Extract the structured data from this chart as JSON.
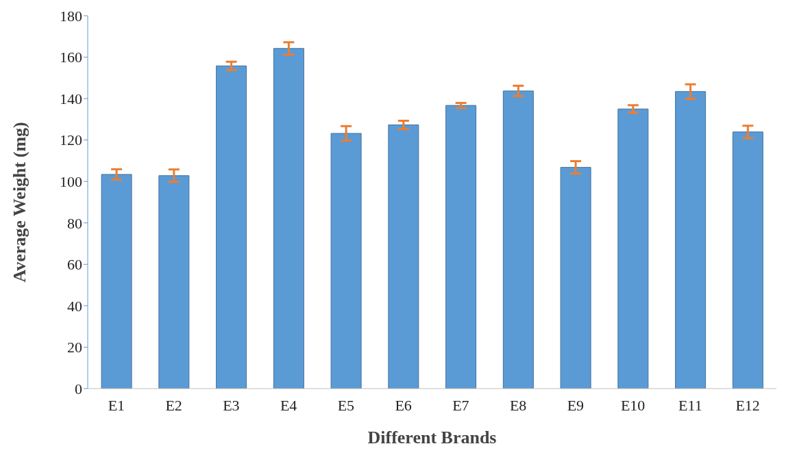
{
  "chart_data": {
    "type": "bar",
    "xlabel": "Different Brands",
    "ylabel": "Average Weight (mg)",
    "categories": [
      "E1",
      "E2",
      "E3",
      "E4",
      "E5",
      "E6",
      "E7",
      "E8",
      "E9",
      "E10",
      "E11",
      "E12"
    ],
    "series": [
      {
        "color": "#5b9bd5",
        "values": [
          103.4,
          102.8,
          155.8,
          164.2,
          123.2,
          127.3,
          136.7,
          143.7,
          106.8,
          135,
          143.4,
          123.9
        ],
        "errors": [
          2.5,
          3,
          2,
          3,
          3.5,
          2,
          1.2,
          2.5,
          3,
          1.8,
          3.5,
          3
        ]
      }
    ],
    "ylim": [
      0,
      180
    ],
    "yticks": [
      0,
      20,
      40,
      60,
      80,
      100,
      120,
      140,
      160,
      180
    ],
    "grid": false,
    "legend": false
  }
}
